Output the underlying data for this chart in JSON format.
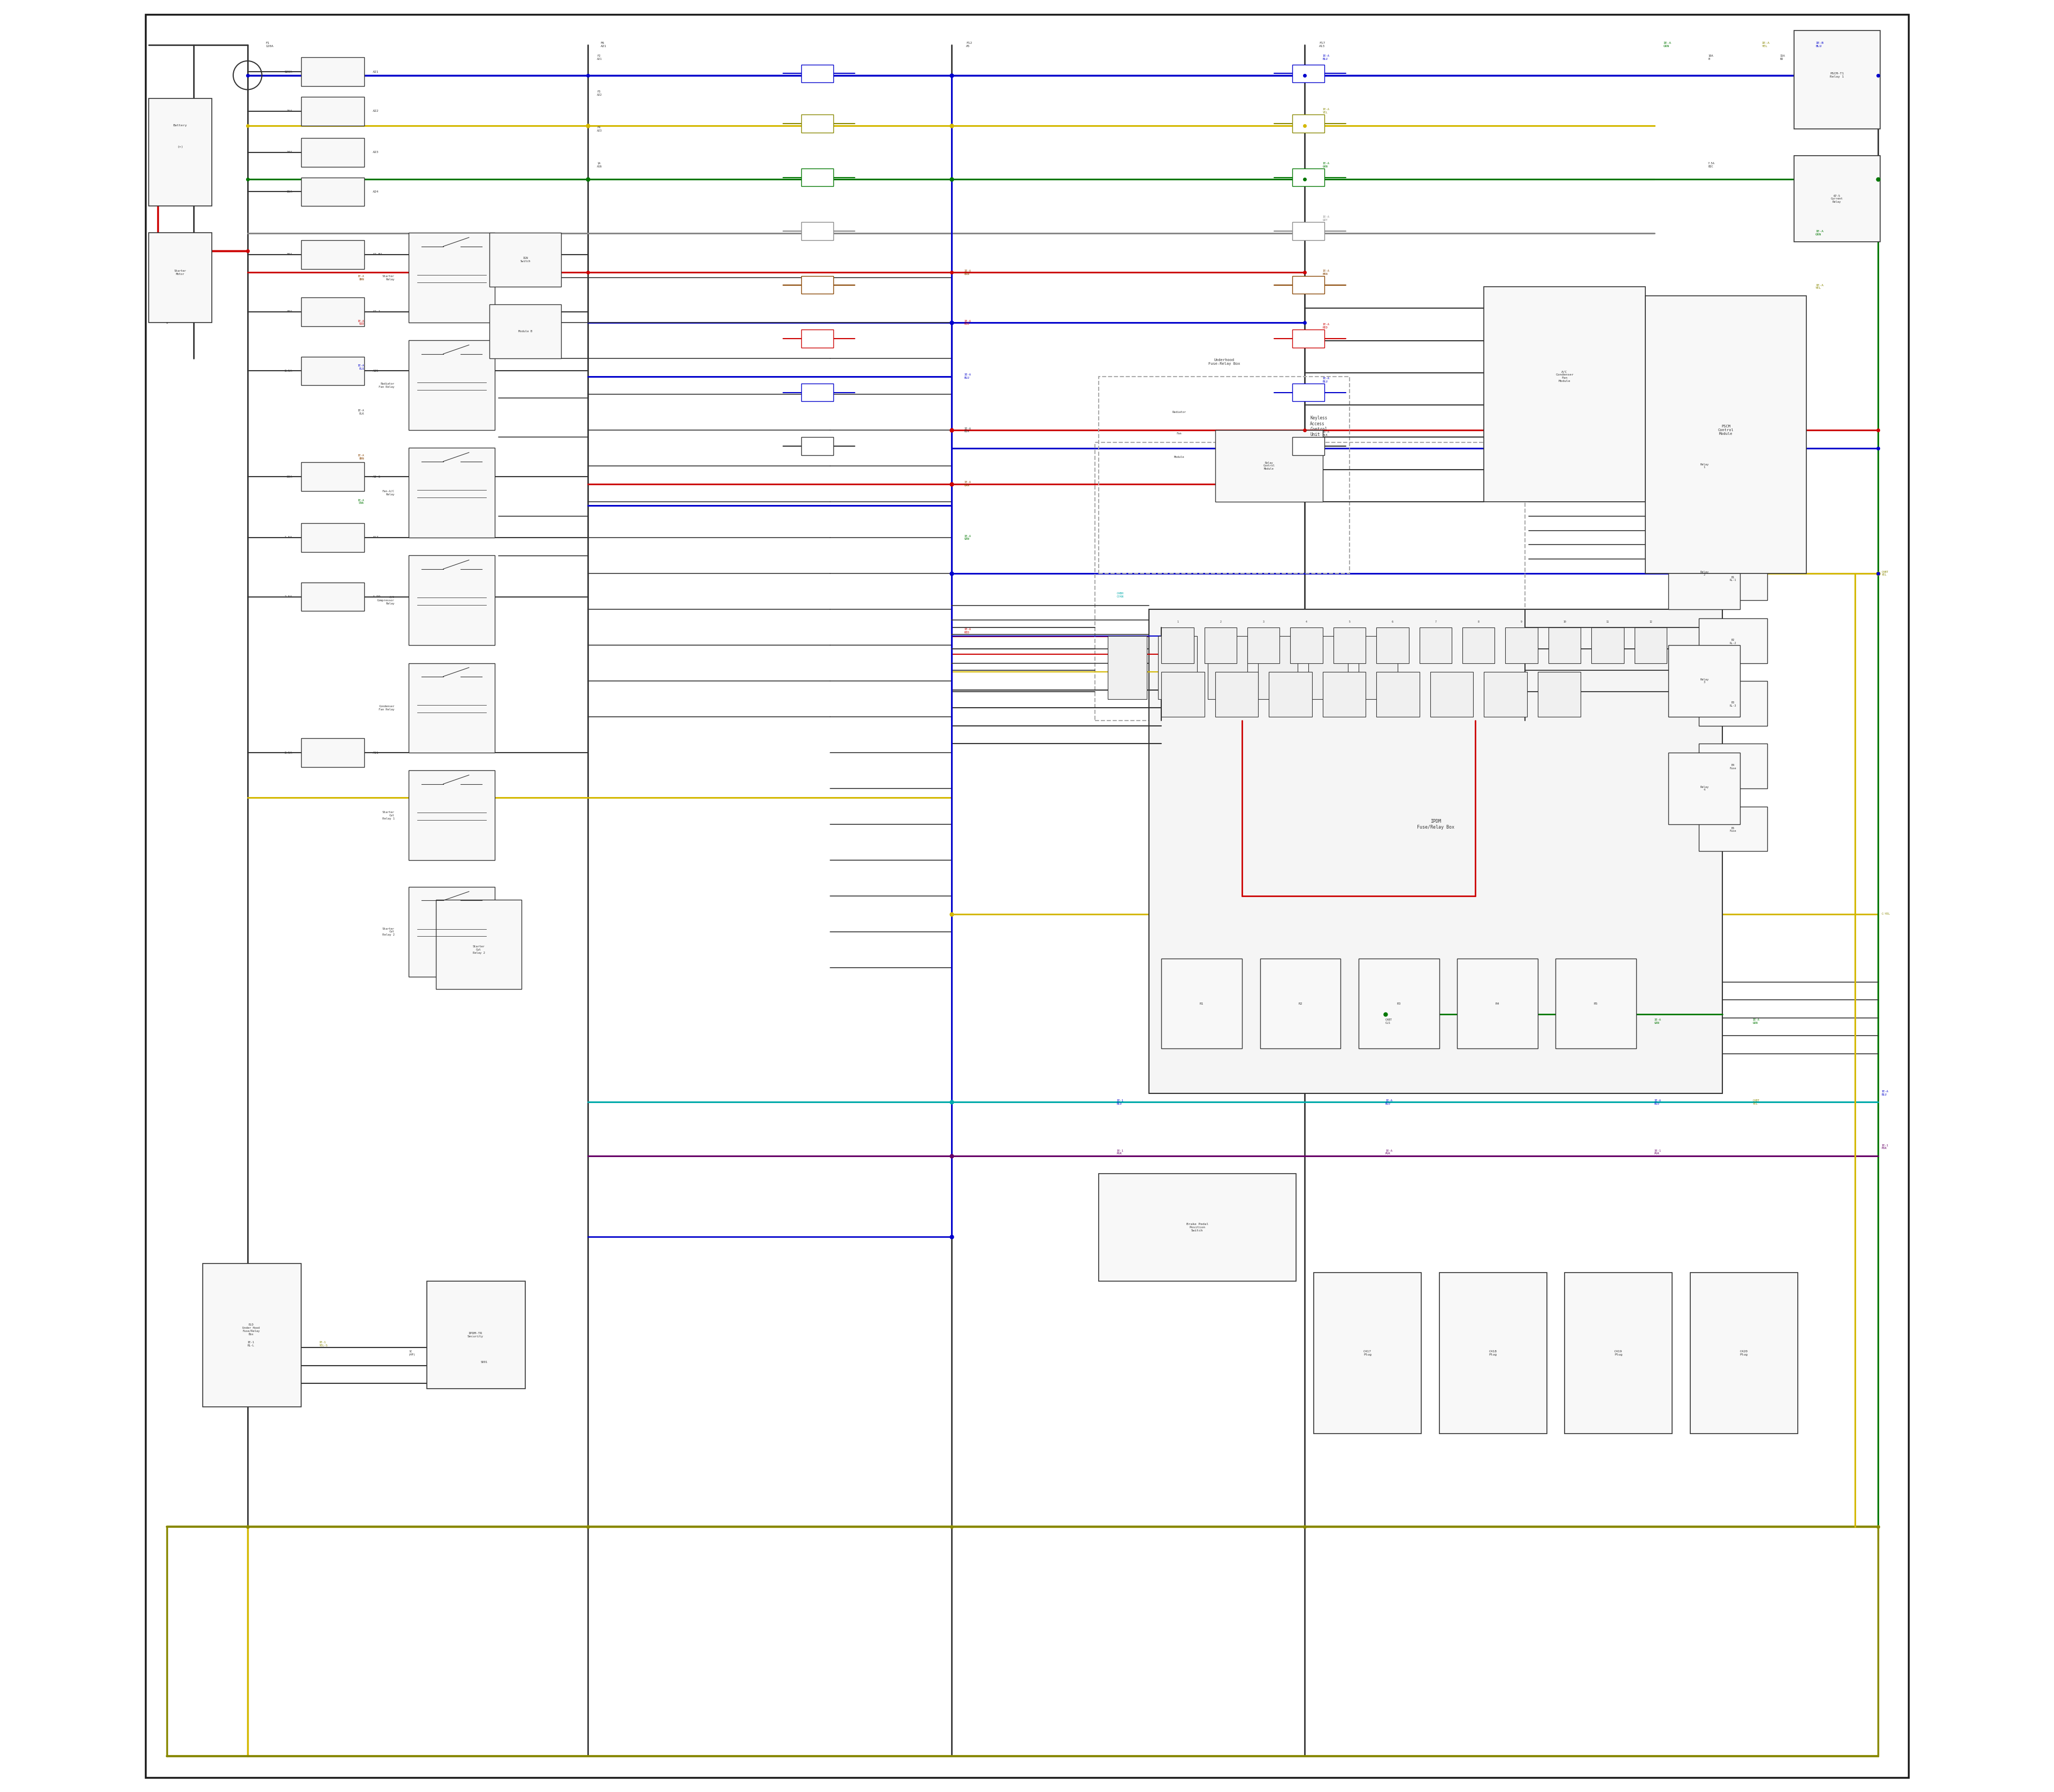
{
  "bg_color": "#ffffff",
  "fig_width": 38.4,
  "fig_height": 33.5,
  "colors": {
    "black": "#1a1a1a",
    "red": "#cc0000",
    "blue": "#0000cc",
    "yellow": "#d4b800",
    "green": "#007700",
    "cyan": "#00aaaa",
    "purple": "#660066",
    "gray": "#888888",
    "dark_yellow": "#888800",
    "brown": "#884400",
    "dark_gray": "#333333",
    "light_gray": "#f0f0f0",
    "box_fill": "#f8f8f8",
    "dashed_box": "#aaaaaa"
  },
  "page_border": [
    0.008,
    0.008,
    0.984,
    0.984
  ]
}
